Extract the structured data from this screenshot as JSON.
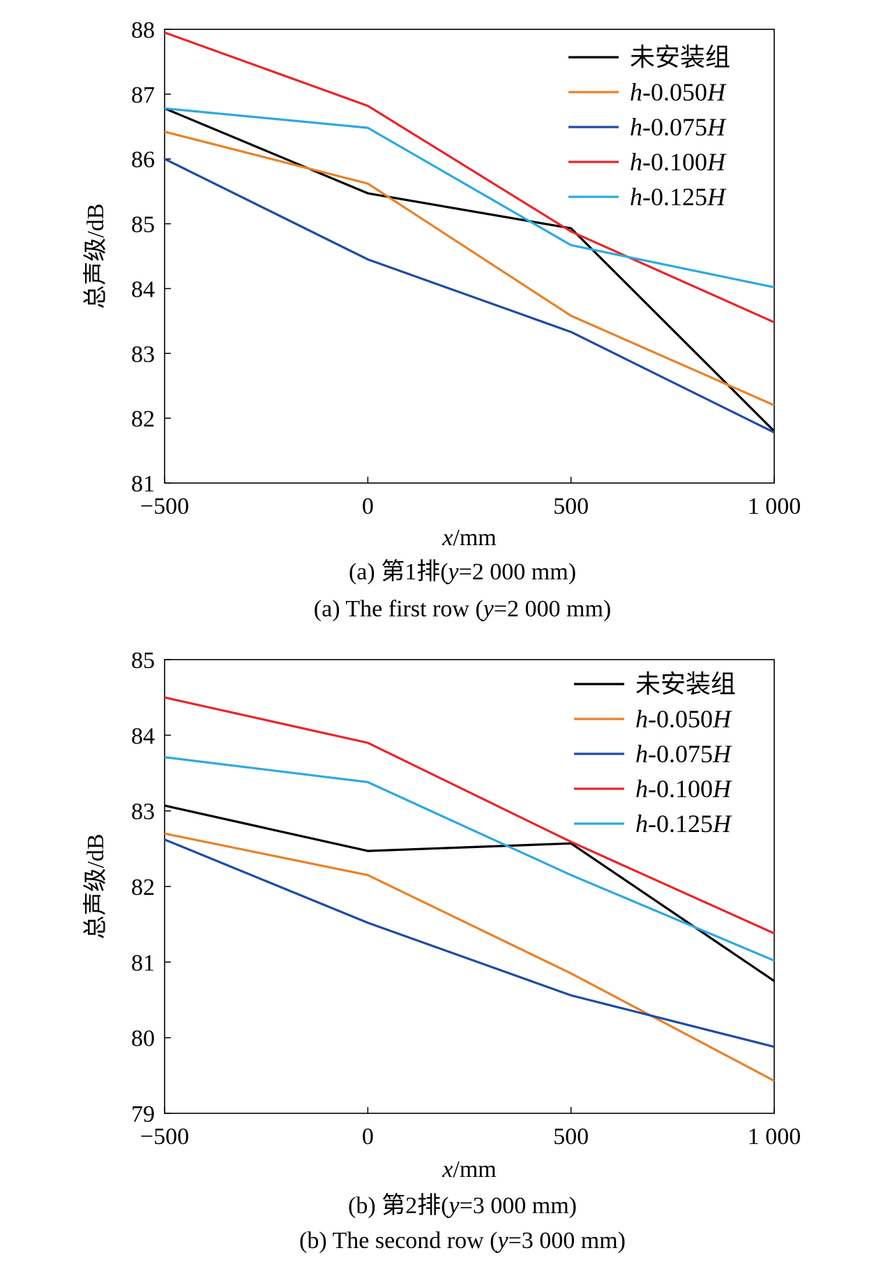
{
  "chart_data": [
    {
      "type": "line",
      "title": "",
      "xlabel": "x/mm",
      "ylabel": "总声级/dB",
      "x": [
        -500,
        0,
        500,
        1000
      ],
      "x_tick_labels": [
        "−500",
        "0",
        "500",
        "1 000"
      ],
      "ylim": [
        81,
        88
      ],
      "y_ticks": [
        81,
        82,
        83,
        84,
        85,
        86,
        87,
        88
      ],
      "legend_position": "top-right",
      "grid": false,
      "caption_cn": "(a) 第1排(y=2 000 mm)",
      "caption_en": "(a) The first row (y=2 000 mm)",
      "series": [
        {
          "name": "未安装组",
          "color": "#000000",
          "values": [
            86.78,
            85.47,
            84.93,
            81.8
          ]
        },
        {
          "name": "h-0.050H",
          "color": "#E8822A",
          "values": [
            86.42,
            85.62,
            83.58,
            82.2
          ]
        },
        {
          "name": "h-0.075H",
          "color": "#1F4BA5",
          "values": [
            86.0,
            84.45,
            83.33,
            81.78
          ]
        },
        {
          "name": "h-0.100H",
          "color": "#E8262A",
          "values": [
            87.95,
            86.82,
            84.88,
            83.48
          ]
        },
        {
          "name": "h-0.125H",
          "color": "#2EA8E0",
          "values": [
            86.78,
            86.48,
            84.67,
            84.02
          ]
        }
      ]
    },
    {
      "type": "line",
      "title": "",
      "xlabel": "x/mm",
      "ylabel": "总声级/dB",
      "x": [
        -500,
        0,
        500,
        1000
      ],
      "x_tick_labels": [
        "−500",
        "0",
        "500",
        "1 000"
      ],
      "ylim": [
        79,
        85
      ],
      "y_ticks": [
        79,
        80,
        81,
        82,
        83,
        84,
        85
      ],
      "legend_position": "top-right",
      "grid": false,
      "caption_cn": "(b) 第2排(y=3 000 mm)",
      "caption_en": "(b) The second row (y=3 000 mm)",
      "series": [
        {
          "name": "未安装组",
          "color": "#000000",
          "values": [
            83.07,
            82.47,
            82.57,
            80.75
          ]
        },
        {
          "name": "h-0.050H",
          "color": "#E8822A",
          "values": [
            82.7,
            82.15,
            80.85,
            79.43
          ]
        },
        {
          "name": "h-0.075H",
          "color": "#1F4BA5",
          "values": [
            82.62,
            81.52,
            80.56,
            79.88
          ]
        },
        {
          "name": "h-0.100H",
          "color": "#E8262A",
          "values": [
            84.5,
            83.9,
            82.59,
            81.38
          ]
        },
        {
          "name": "h-0.125H",
          "color": "#2EA8E0",
          "values": [
            83.71,
            83.38,
            82.15,
            81.02
          ]
        }
      ]
    }
  ]
}
